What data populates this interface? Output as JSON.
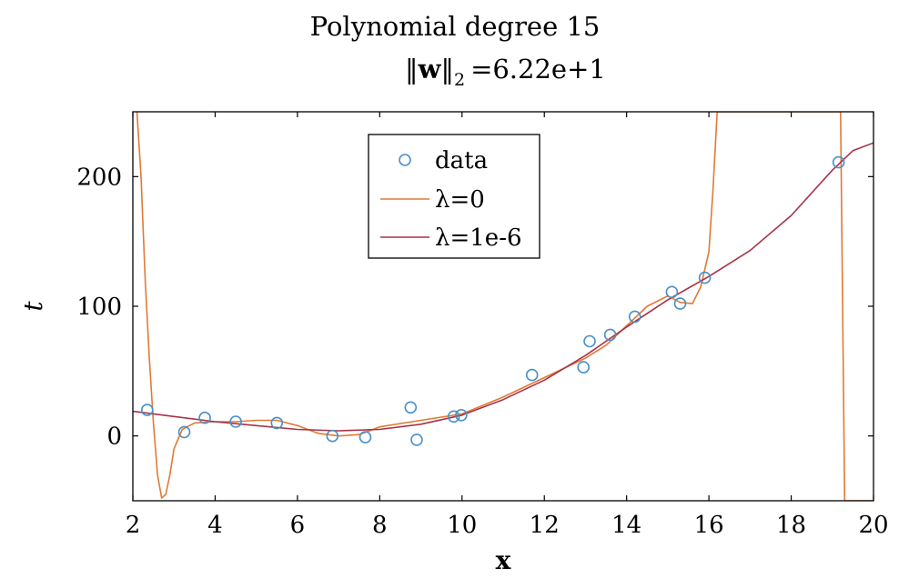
{
  "chart_data": {
    "type": "scatter",
    "title": "Polynomial degree 15",
    "subtitle": "‖w‖₂ =6.22e+1",
    "subtitle_parts": {
      "norm": "‖",
      "w": "w",
      "sub": "2",
      "value": "=6.22e+1"
    },
    "xlabel": "x",
    "ylabel": "t",
    "xlim": [
      2,
      20
    ],
    "ylim": [
      -50,
      250
    ],
    "xticks": [
      2,
      4,
      6,
      8,
      10,
      12,
      14,
      16,
      18,
      20
    ],
    "yticks": [
      0,
      100,
      200
    ],
    "grid": false,
    "legend_position": "top-center",
    "colors": {
      "data": "#4a90c8",
      "lambda0": "#e07a35",
      "lambda1e6": "#a83246"
    },
    "series": [
      {
        "name": "data",
        "kind": "markers",
        "x": [
          2.35,
          3.25,
          3.75,
          4.5,
          5.5,
          6.85,
          7.65,
          8.75,
          8.9,
          9.8,
          9.98,
          11.7,
          12.95,
          13.1,
          13.6,
          14.2,
          15.1,
          15.3,
          15.9,
          19.15
        ],
        "y": [
          20,
          3,
          14,
          11,
          10,
          0,
          -1,
          22,
          -3,
          15,
          16,
          47,
          53,
          73,
          78,
          92,
          111,
          102,
          122,
          211
        ]
      },
      {
        "name": "λ=0",
        "kind": "line",
        "x": [
          2.1,
          2.2,
          2.3,
          2.4,
          2.5,
          2.6,
          2.7,
          2.8,
          2.9,
          3.0,
          3.2,
          3.5,
          4.0,
          4.5,
          5.0,
          5.5,
          6.0,
          6.5,
          7.0,
          7.5,
          8.0,
          9.0,
          10.0,
          11.0,
          12.0,
          13.0,
          13.5,
          14.0,
          14.5,
          15.0,
          15.3,
          15.6,
          15.8,
          16.0,
          16.1,
          16.2,
          16.4,
          17.0,
          18.0,
          19.0,
          19.2,
          19.3,
          19.4,
          19.6,
          20.0
        ],
        "y": [
          250,
          200,
          120,
          60,
          10,
          -30,
          -48,
          -45,
          -30,
          -10,
          5,
          10,
          11,
          11,
          12,
          12,
          8,
          2,
          0,
          1,
          7,
          12,
          17,
          30,
          45,
          60,
          70,
          85,
          100,
          108,
          103,
          102,
          115,
          142,
          190,
          250,
          250,
          250,
          250,
          250,
          250,
          -50,
          -50,
          -50,
          -50
        ]
      },
      {
        "name": "λ=1e-6",
        "kind": "line",
        "x": [
          2.0,
          3.0,
          4.0,
          5.0,
          6.0,
          7.0,
          8.0,
          9.0,
          10.0,
          11.0,
          12.0,
          13.0,
          14.0,
          15.0,
          16.0,
          17.0,
          18.0,
          19.0,
          19.5,
          20.0
        ],
        "y": [
          19,
          15,
          11,
          8,
          5,
          4,
          5,
          9,
          16,
          28,
          43,
          62,
          84,
          105,
          123,
          143,
          170,
          205,
          220,
          226
        ]
      }
    ]
  }
}
